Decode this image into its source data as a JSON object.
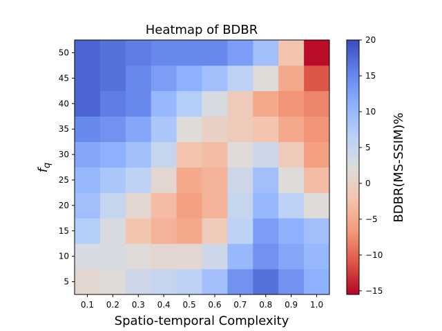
{
  "chart_data": {
    "type": "heatmap",
    "title": "Heatmap of BDBR",
    "xlabel": "Spatio-temporal Complexity",
    "ylabel_main": "f",
    "ylabel_sub": "q",
    "colorbar_label": "BDBR(MS-SSIM)%",
    "colormap": "coolwarm_r",
    "x": [
      "0.1",
      "0.2",
      "0.3",
      "0.4",
      "0.5",
      "0.6",
      "0.7",
      "0.8",
      "0.9",
      "1.0"
    ],
    "y": [
      "5",
      "10",
      "15",
      "20",
      "25",
      "30",
      "35",
      "40",
      "45",
      "50"
    ],
    "vmin": -15.5,
    "vmax": 20,
    "colorbar_ticks": [
      "-15",
      "-10",
      "-5",
      "0",
      "5",
      "10",
      "15",
      "20"
    ],
    "values": [
      [
        1,
        2,
        4,
        5,
        6,
        9,
        14,
        17,
        14,
        11
      ],
      [
        3,
        3,
        2,
        1,
        1,
        4,
        10,
        14,
        12,
        10
      ],
      [
        7,
        3,
        -2,
        -4,
        -5,
        -1,
        6,
        13,
        11,
        9
      ],
      [
        9,
        5,
        1,
        -3,
        -6,
        -4,
        5,
        10,
        6,
        2
      ],
      [
        10,
        8,
        6,
        1,
        -5,
        -4,
        4,
        9,
        2,
        -3
      ],
      [
        12,
        11,
        9,
        5,
        -2,
        -3,
        2,
        4,
        -1,
        -6
      ],
      [
        15,
        14,
        12,
        8,
        2,
        0,
        -1,
        -2,
        -5,
        -7
      ],
      [
        18,
        16,
        15,
        10,
        7,
        3,
        -1,
        -5,
        -7,
        -8
      ],
      [
        18,
        17,
        15,
        13,
        11,
        9,
        6,
        2,
        -5,
        -11
      ],
      [
        18,
        17,
        16,
        15,
        15,
        15,
        13,
        9,
        -2,
        -15
      ]
    ]
  }
}
